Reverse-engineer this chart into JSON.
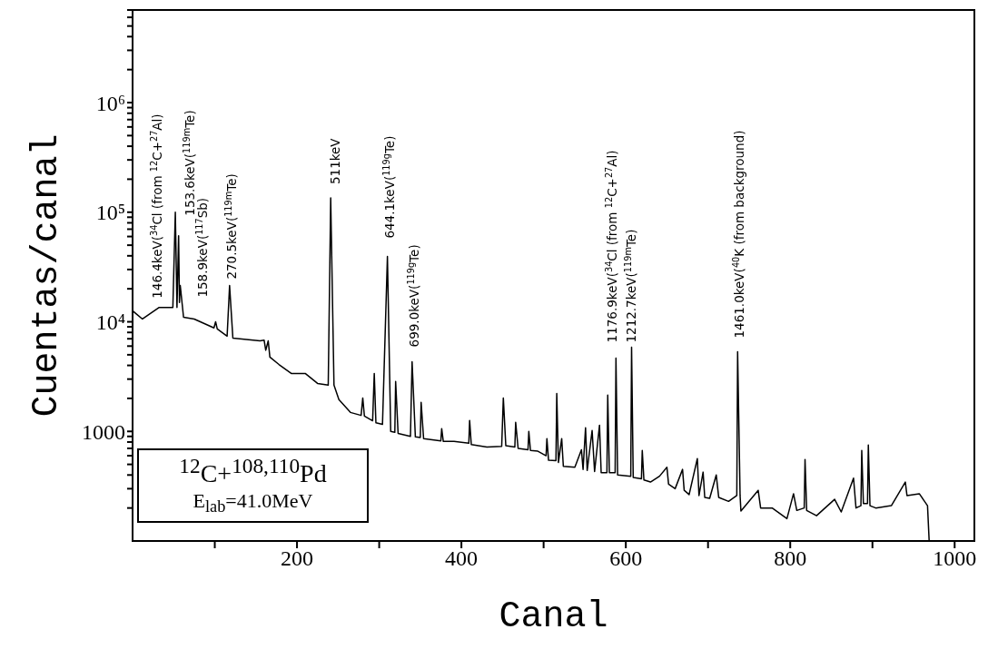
{
  "chart_data": {
    "type": "line",
    "xlabel": "Canal",
    "ylabel": "Cuentas/canal",
    "log": "y",
    "line_style": "solid",
    "xlim": [
      0,
      1024
    ],
    "xticks": [
      {
        "value": 100,
        "label": null
      },
      200,
      {
        "value": 300,
        "label": null
      },
      400,
      {
        "value": 500,
        "label": null
      },
      600,
      {
        "value": 700,
        "label": null
      },
      800,
      {
        "value": 900,
        "label": null
      },
      1000
    ],
    "ylim": [
      100,
      7000000
    ],
    "yticks": [
      {
        "value": 200,
        "label": null
      },
      {
        "value": 300,
        "label": null
      },
      {
        "value": 400,
        "label": null
      },
      {
        "value": 500,
        "label": null
      },
      {
        "value": 600,
        "label": null
      },
      {
        "value": 700,
        "label": null
      },
      {
        "value": 800,
        "label": null
      },
      {
        "value": 900,
        "label": null
      },
      1000,
      {
        "value": 2000,
        "label": null
      },
      {
        "value": 3000,
        "label": null
      },
      {
        "value": 4000,
        "label": null
      },
      {
        "value": 5000,
        "label": null
      },
      {
        "value": 6000,
        "label": null
      },
      {
        "value": 7000,
        "label": null
      },
      {
        "value": 8000,
        "label": null
      },
      {
        "value": 9000,
        "label": null
      },
      {
        "value": 10000,
        "label": "10⁴"
      },
      {
        "value": 20000,
        "label": null
      },
      {
        "value": 30000,
        "label": null
      },
      {
        "value": 40000,
        "label": null
      },
      {
        "value": 50000,
        "label": null
      },
      {
        "value": 60000,
        "label": null
      },
      {
        "value": 70000,
        "label": null
      },
      {
        "value": 80000,
        "label": null
      },
      {
        "value": 90000,
        "label": null
      },
      {
        "value": 100000,
        "label": "10⁵"
      },
      {
        "value": 200000,
        "label": null
      },
      {
        "value": 300000,
        "label": null
      },
      {
        "value": 400000,
        "label": null
      },
      {
        "value": 500000,
        "label": null
      },
      {
        "value": 600000,
        "label": null
      },
      {
        "value": 700000,
        "label": null
      },
      {
        "value": 800000,
        "label": null
      },
      {
        "value": 900000,
        "label": null
      },
      {
        "value": 1000000,
        "label": "10⁶"
      },
      {
        "value": 2000000,
        "label": null
      },
      {
        "value": 3000000,
        "label": null
      },
      {
        "value": 4000000,
        "label": null
      },
      {
        "value": 5000000,
        "label": null
      },
      {
        "value": 6000000,
        "label": null
      },
      {
        "value": 7000000,
        "label": null
      }
    ],
    "series": [
      {
        "color": "#000000",
        "x": [
          0,
          12,
          32,
          49,
          52,
          54,
          56,
          57,
          58,
          62,
          75,
          99,
          101,
          103,
          115,
          118,
          122,
          155,
          160,
          162,
          165,
          167,
          178,
          193,
          210,
          225,
          238,
          241,
          245,
          251,
          265,
          278,
          280,
          282,
          292,
          294,
          296,
          304,
          310,
          314,
          319,
          320,
          323,
          338,
          340,
          344,
          350,
          351,
          354,
          375,
          376,
          378,
          391,
          409,
          410,
          412,
          431,
          449,
          451,
          454,
          465,
          466,
          469,
          481,
          482,
          484,
          493,
          503,
          504,
          506,
          515,
          516,
          518,
          522,
          524,
          538,
          546,
          548,
          551,
          553,
          559,
          562,
          568,
          570,
          577,
          578,
          580,
          587,
          588,
          590,
          606,
          607,
          609,
          619,
          620,
          622,
          630,
          641,
          650,
          652,
          660,
          669,
          671,
          677,
          687,
          689,
          694,
          696,
          702,
          710,
          713,
          725,
          735,
          736,
          739,
          740,
          761,
          764,
          778,
          796,
          804,
          808,
          817,
          818,
          820,
          832,
          854,
          862,
          877,
          880,
          886,
          887,
          889,
          894,
          895,
          897,
          904,
          923,
          940,
          942,
          957,
          967,
          969
        ],
        "values": [
          12600,
          10600,
          13500,
          13500,
          100000,
          13500,
          61000,
          15000,
          21400,
          11000,
          10600,
          8800,
          10000,
          8600,
          7400,
          21400,
          7100,
          6700,
          6800,
          5500,
          6700,
          4760,
          4080,
          3380,
          3380,
          2740,
          2640,
          135000,
          2640,
          1950,
          1490,
          1400,
          2020,
          1380,
          1250,
          3380,
          1200,
          1160,
          39400,
          1000,
          980,
          2850,
          960,
          900,
          4330,
          890,
          880,
          1840,
          860,
          820,
          1060,
          810,
          810,
          780,
          1260,
          760,
          720,
          730,
          2020,
          740,
          720,
          1210,
          700,
          680,
          1000,
          670,
          660,
          600,
          860,
          545,
          540,
          2220,
          520,
          860,
          480,
          470,
          680,
          450,
          1080,
          440,
          1020,
          430,
          1140,
          420,
          420,
          2140,
          420,
          420,
          4670,
          400,
          390,
          5860,
          380,
          370,
          670,
          360,
          345,
          390,
          470,
          330,
          300,
          450,
          290,
          265,
          565,
          260,
          425,
          250,
          245,
          400,
          250,
          230,
          260,
          5330,
          260,
          188,
          290,
          200,
          200,
          160,
          270,
          190,
          200,
          555,
          190,
          170,
          240,
          184,
          375,
          200,
          210,
          670,
          220,
          220,
          750,
          210,
          200,
          210,
          345,
          260,
          270,
          210,
          100
        ]
      }
    ],
    "annotations": [
      {
        "text": "146.4keV($^{34}$Cl (from $^{12}$C+$^{27}$Al)",
        "x": 52,
        "y": 100000
      },
      {
        "text": "153.6keV($^{119m}$Te)",
        "x": 56,
        "y": 61000
      },
      {
        "text": "158.9keV($^{117}$Sb)",
        "x": 58,
        "y": 21400
      },
      {
        "text": "270.5keV($^{119m}$Te)",
        "x": 118,
        "y": 21400
      },
      {
        "text": "511keV",
        "x": 241,
        "y": 135000
      },
      {
        "text": "644.1keV($^{119g}$Te)",
        "x": 310,
        "y": 39400
      },
      {
        "text": "699.0keV($^{119g}$Te)",
        "x": 340,
        "y": 4330
      },
      {
        "text": "1176.9keV($^{34}$Cl (from $^{12}$C+$^{27}$Al)",
        "x": 588,
        "y": 4670
      },
      {
        "text": "1212.7keV($^{119m}$Te)",
        "x": 607,
        "y": 5860
      },
      {
        "text": "1461.0keV($^{40}$K (from background)",
        "x": 736,
        "y": 5330
      },
      "$^{12}$C+$^{108,110}$Pd",
      "E$_{lab}$=41.0MeV"
    ]
  }
}
